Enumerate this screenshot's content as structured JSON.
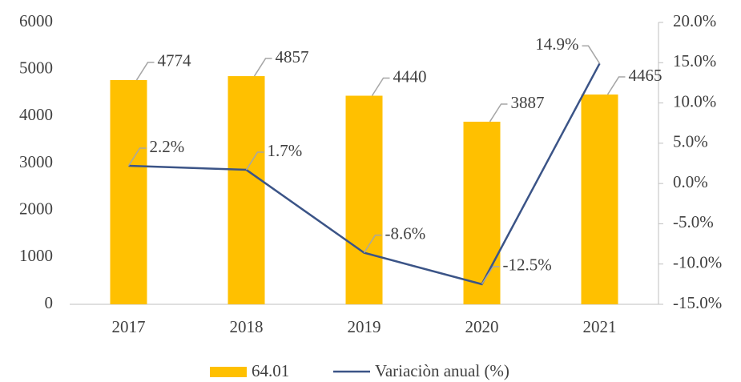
{
  "chart_data": {
    "type": "bar_line",
    "categories": [
      "2017",
      "2018",
      "2019",
      "2020",
      "2021"
    ],
    "series": [
      {
        "name": "64.01",
        "color": "#FFC000",
        "type": "bar",
        "values": [
          4774,
          4857,
          4440,
          3887,
          4465
        ]
      },
      {
        "name": "Variaciòn anual (%)",
        "color": "#3B5487",
        "type": "line",
        "axis": "y2",
        "values": [
          2.2,
          1.7,
          -8.6,
          -12.5,
          14.9
        ],
        "value_labels": [
          "2.2%",
          "1.7%",
          "-8.6%",
          "-12.5%",
          "14.9%"
        ]
      }
    ],
    "ylim": [
      0,
      6000
    ],
    "yticks": [
      0,
      1000,
      2000,
      3000,
      4000,
      5000,
      6000
    ],
    "y2lim": [
      -15,
      20
    ],
    "y2ticks": [
      {
        "value": -15,
        "label": "-15.0%"
      },
      {
        "value": -10,
        "label": "-10.0%"
      },
      {
        "value": -5,
        "label": "-5.0%"
      },
      {
        "value": 0,
        "label": "0.0%"
      },
      {
        "value": 5,
        "label": "5.0%"
      },
      {
        "value": 10,
        "label": "10.0%"
      },
      {
        "value": 15,
        "label": "15.0%"
      },
      {
        "value": 20,
        "label": "20.0%"
      }
    ],
    "legend": "bottom",
    "grid": false
  }
}
